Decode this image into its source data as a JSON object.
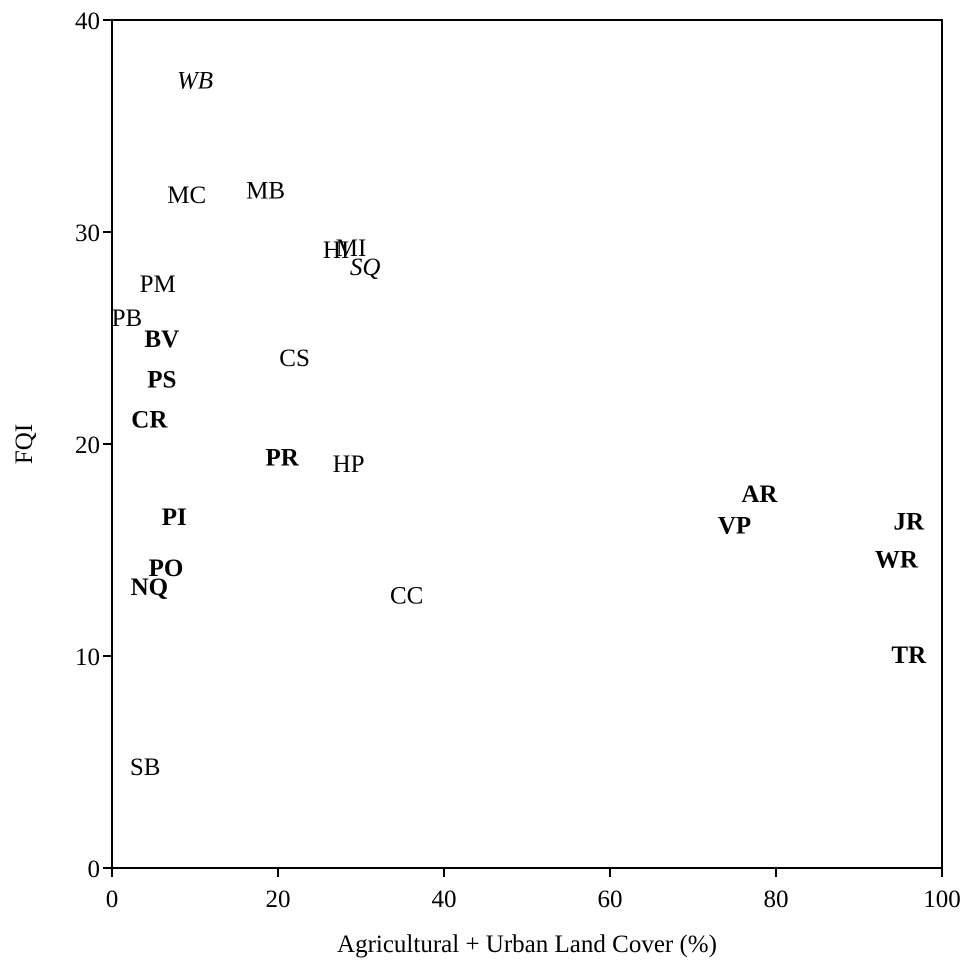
{
  "chart_data": {
    "type": "scatter",
    "title": "",
    "xlabel": "Agricultural + Urban Land Cover (%)",
    "ylabel": "FQI",
    "xlim": [
      0,
      100
    ],
    "ylim": [
      0,
      40
    ],
    "xticks": [
      "0",
      "20",
      "40",
      "60",
      "80",
      "100"
    ],
    "yticks": [
      "0",
      "10",
      "20",
      "30",
      "40"
    ],
    "grid": false,
    "legend": "none",
    "points": [
      {
        "label": "WB",
        "x": 10,
        "y": 37.2,
        "style": "italic"
      },
      {
        "label": "MC",
        "x": 9,
        "y": 31.8,
        "style": "normal"
      },
      {
        "label": "MB",
        "x": 18.5,
        "y": 32.0,
        "style": "normal"
      },
      {
        "label": "HI",
        "x": 27,
        "y": 29.2,
        "style": "normal"
      },
      {
        "label": "MI",
        "x": 28.8,
        "y": 29.3,
        "style": "normal"
      },
      {
        "label": "SQ",
        "x": 30.5,
        "y": 28.4,
        "style": "italic"
      },
      {
        "label": "PM",
        "x": 5.5,
        "y": 27.6,
        "style": "normal"
      },
      {
        "label": "PB",
        "x": 1.8,
        "y": 26.0,
        "style": "normal"
      },
      {
        "label": "BV",
        "x": 6,
        "y": 25.0,
        "style": "bold"
      },
      {
        "label": "CS",
        "x": 22,
        "y": 24.1,
        "style": "normal"
      },
      {
        "label": "PS",
        "x": 6,
        "y": 23.1,
        "style": "bold"
      },
      {
        "label": "CR",
        "x": 4.5,
        "y": 21.2,
        "style": "bold"
      },
      {
        "label": "PR",
        "x": 20.5,
        "y": 19.4,
        "style": "bold"
      },
      {
        "label": "HP",
        "x": 28.5,
        "y": 19.1,
        "style": "normal"
      },
      {
        "label": "AR",
        "x": 78,
        "y": 17.7,
        "style": "bold"
      },
      {
        "label": "JR",
        "x": 96,
        "y": 16.4,
        "style": "bold"
      },
      {
        "label": "PI",
        "x": 7.5,
        "y": 16.6,
        "style": "bold"
      },
      {
        "label": "VP",
        "x": 75,
        "y": 16.2,
        "style": "bold"
      },
      {
        "label": "WR",
        "x": 94.5,
        "y": 14.6,
        "style": "bold"
      },
      {
        "label": "PO",
        "x": 6.5,
        "y": 14.2,
        "style": "bold"
      },
      {
        "label": "NQ",
        "x": 4.5,
        "y": 13.3,
        "style": "bold"
      },
      {
        "label": "CC",
        "x": 35.5,
        "y": 12.9,
        "style": "normal"
      },
      {
        "label": "TR",
        "x": 96,
        "y": 10.1,
        "style": "bold"
      },
      {
        "label": "SB",
        "x": 4,
        "y": 4.8,
        "style": "normal"
      }
    ]
  }
}
